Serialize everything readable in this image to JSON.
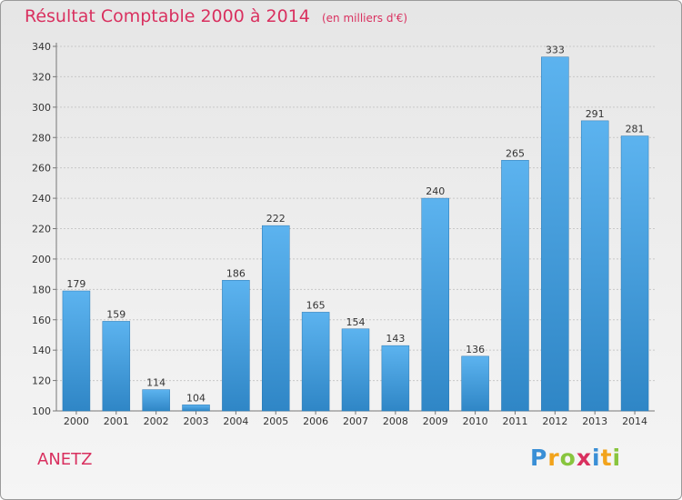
{
  "title": "Résultat Comptable 2000 à 2014",
  "unit_label": "(en milliers d'€)",
  "commune": "ANETZ",
  "logo": {
    "letters": [
      {
        "ch": "P",
        "color": "#3a8fd6"
      },
      {
        "ch": "r",
        "color": "#f2a31b"
      },
      {
        "ch": "o",
        "color": "#88c53e"
      },
      {
        "ch": "x",
        "color": "#d9305f"
      },
      {
        "ch": "i",
        "color": "#3a8fd6"
      },
      {
        "ch": "t",
        "color": "#f2a31b"
      },
      {
        "ch": "i",
        "color": "#88c53e"
      }
    ]
  },
  "colors": {
    "bar_top": "#5cb3ef",
    "bar_bottom": "#2f86c6",
    "title": "#d9305f"
  },
  "chart_data": {
    "type": "bar",
    "title": "Résultat Comptable 2000 à 2014",
    "subtitle": "(en milliers d'€)",
    "xlabel": "",
    "ylabel": "",
    "categories": [
      "2000",
      "2001",
      "2002",
      "2003",
      "2004",
      "2005",
      "2006",
      "2007",
      "2008",
      "2009",
      "2010",
      "2011",
      "2012",
      "2013",
      "2014"
    ],
    "values": [
      179,
      159,
      114,
      104,
      186,
      222,
      165,
      154,
      143,
      240,
      136,
      265,
      333,
      291,
      281
    ],
    "ylim": [
      100,
      340
    ],
    "yticks": [
      100,
      120,
      140,
      160,
      180,
      200,
      220,
      240,
      260,
      280,
      300,
      320,
      340
    ],
    "grid": true
  }
}
